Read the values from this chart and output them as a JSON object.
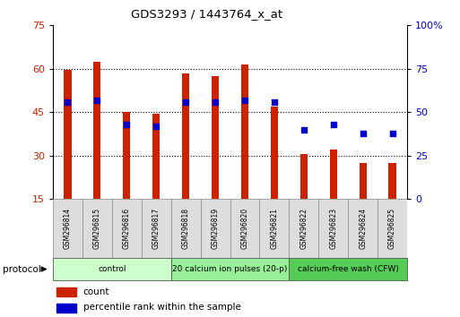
{
  "title": "GDS3293 / 1443764_x_at",
  "samples": [
    "GSM296814",
    "GSM296815",
    "GSM296816",
    "GSM296817",
    "GSM296818",
    "GSM296819",
    "GSM296820",
    "GSM296821",
    "GSM296822",
    "GSM296823",
    "GSM296824",
    "GSM296825"
  ],
  "counts": [
    59.5,
    62.5,
    45.0,
    44.5,
    58.5,
    57.5,
    61.5,
    47.0,
    30.5,
    32.0,
    27.5,
    27.5
  ],
  "percentile_ranks": [
    56,
    57,
    43,
    42,
    56,
    56,
    57,
    56,
    40,
    43,
    38,
    38
  ],
  "bar_color": "#CC2200",
  "dot_color": "#0000CC",
  "ylim_left": [
    15,
    75
  ],
  "ylim_right": [
    0,
    100
  ],
  "yticks_left": [
    15,
    30,
    45,
    60,
    75
  ],
  "yticks_right": [
    0,
    25,
    50,
    75,
    100
  ],
  "ytick_labels_right": [
    "0",
    "25",
    "50",
    "75",
    "100%"
  ],
  "groups": [
    {
      "label": "control",
      "start": 0,
      "end": 4
    },
    {
      "label": "20 calcium ion pulses (20-p)",
      "start": 4,
      "end": 8
    },
    {
      "label": "calcium-free wash (CFW)",
      "start": 8,
      "end": 12
    }
  ],
  "group_colors": [
    "#CCFFCC",
    "#99EE99",
    "#55CC55"
  ],
  "protocol_label": "protocol",
  "legend_count": "count",
  "legend_percentile": "percentile rank within the sample",
  "background_color": "#FFFFFF",
  "bar_color_left": "#CC2200",
  "tick_color_left": "#CC2200",
  "tick_color_right": "#0000CC"
}
